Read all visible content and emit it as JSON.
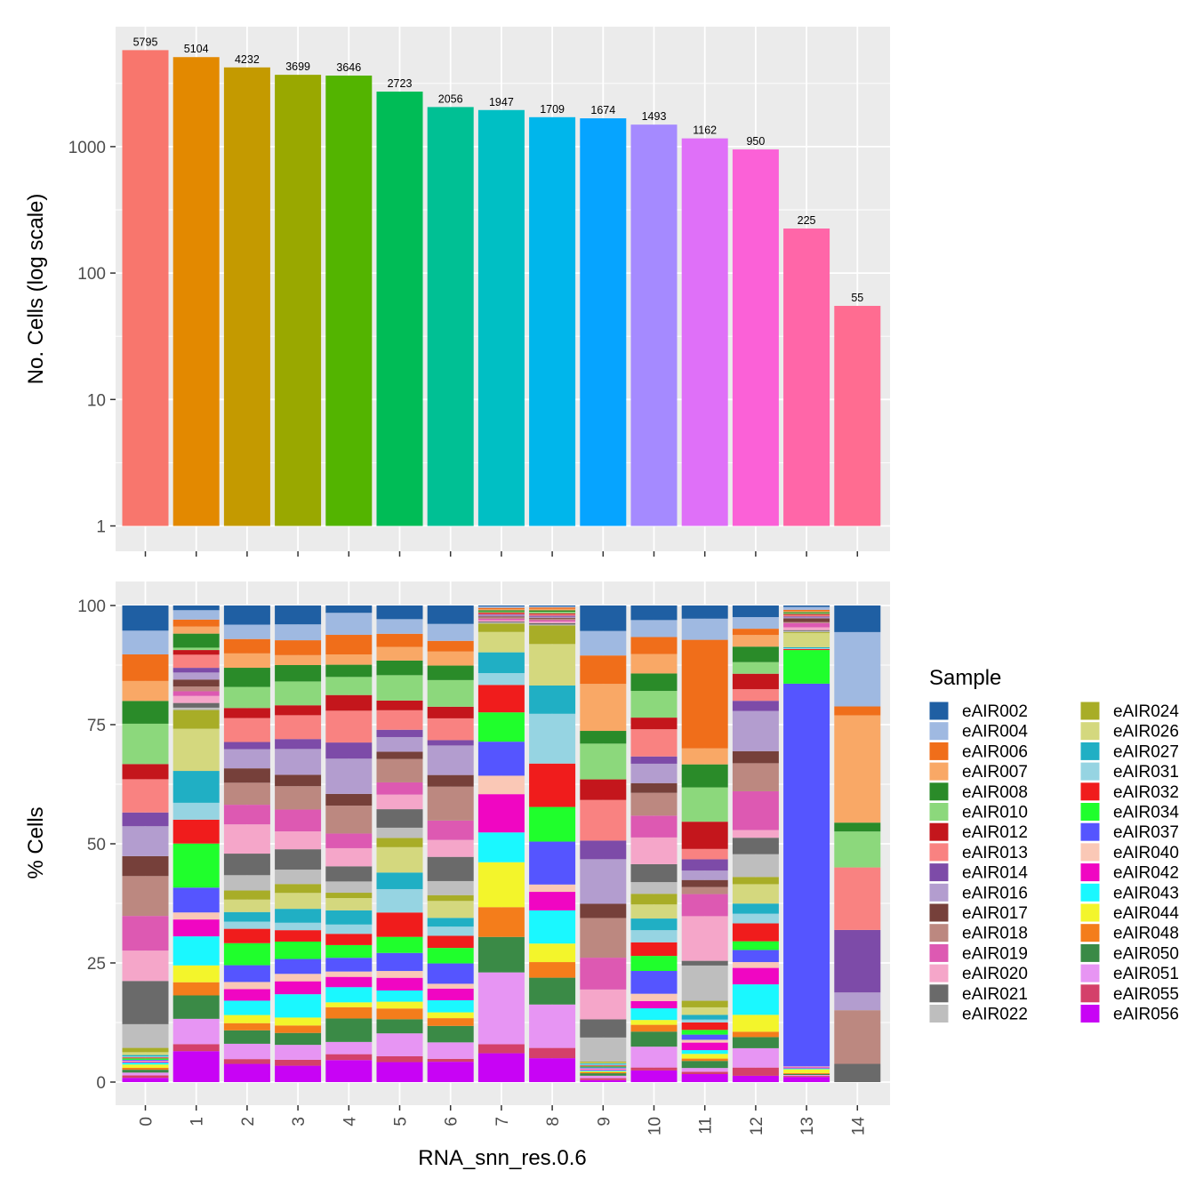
{
  "chart_data": [
    {
      "type": "bar",
      "panel": "counts",
      "ylabel": "No. Cells (log scale)",
      "y_scale": "log10",
      "ylim": [
        1,
        7500
      ],
      "y_ticks": [
        1,
        10,
        100,
        1000
      ],
      "y_tick_labels": [
        "1",
        "10",
        "100",
        "1000"
      ],
      "categories": [
        "0",
        "1",
        "2",
        "3",
        "4",
        "5",
        "6",
        "7",
        "8",
        "9",
        "10",
        "11",
        "12",
        "13",
        "14"
      ],
      "values": [
        5795,
        5104,
        4232,
        3699,
        3646,
        2723,
        2056,
        1947,
        1709,
        1674,
        1493,
        1162,
        950,
        225,
        55
      ],
      "data_labels": [
        "5795",
        "5104",
        "4232",
        "3699",
        "3646",
        "2723",
        "2056",
        "1947",
        "1709",
        "1674",
        "1493",
        "1162",
        "950",
        "225",
        "55"
      ],
      "colors": [
        "#F8766D",
        "#E38900",
        "#C49A00",
        "#99A800",
        "#53B400",
        "#00BC56",
        "#00C094",
        "#00BFC4",
        "#00B6EB",
        "#06A4FF",
        "#A58AFF",
        "#DF70F8",
        "#FB61D7",
        "#FF66A8",
        "#FF6C91"
      ],
      "grid": true
    },
    {
      "type": "bar",
      "stacked": true,
      "panel": "percent",
      "xlabel": "RNA_snn_res.0.6",
      "ylabel": "% Cells",
      "ylim": [
        0,
        100
      ],
      "y_ticks": [
        0,
        25,
        50,
        75,
        100
      ],
      "y_tick_labels": [
        "0",
        "25",
        "50",
        "75",
        "100"
      ],
      "categories": [
        "0",
        "1",
        "2",
        "3",
        "4",
        "5",
        "6",
        "7",
        "8",
        "9",
        "10",
        "11",
        "12",
        "13",
        "14"
      ],
      "legend_title": "Sample",
      "legend_position": "right",
      "grid": true,
      "series": [
        {
          "name": "eAIR002",
          "color": "#1F5FA3",
          "values": [
            5.3,
            1.0,
            4.0,
            3.8,
            1.5,
            2.8,
            3.8,
            0.2,
            0.2,
            5.2,
            3.0,
            2.8,
            2.4,
            0.3,
            5.4
          ]
        },
        {
          "name": "eAIR004",
          "color": "#9FB9E1",
          "values": [
            5.0,
            2.0,
            3.0,
            3.2,
            4.5,
            3.0,
            3.5,
            0.3,
            0.2,
            5.0,
            3.5,
            4.5,
            2.4,
            0.6,
            15.1
          ]
        },
        {
          "name": "eAIR006",
          "color": "#F06E1A",
          "values": [
            5.6,
            1.5,
            3.0,
            3.0,
            4.0,
            2.7,
            2.2,
            0.3,
            0.3,
            5.8,
            3.5,
            23.1,
            1.3,
            0.3,
            1.8
          ]
        },
        {
          "name": "eAIR007",
          "color": "#F9A866",
          "values": [
            4.2,
            1.5,
            3.0,
            2.0,
            2.1,
            2.8,
            2.9,
            0.2,
            0.3,
            9.6,
            4.0,
            3.4,
            2.4,
            0.2,
            21.8
          ]
        },
        {
          "name": "eAIR008",
          "color": "#2A8B29",
          "values": [
            4.8,
            3.0,
            4.0,
            3.3,
            2.5,
            3.0,
            3.0,
            0.3,
            0.3,
            2.6,
            3.6,
            4.9,
            3.2,
            0.2,
            1.8
          ]
        },
        {
          "name": "eAIR010",
          "color": "#8CD87C",
          "values": [
            8.5,
            0.5,
            4.4,
            4.8,
            3.7,
            5.2,
            5.5,
            0.2,
            0.3,
            7.3,
            5.5,
            7.3,
            2.4,
            0.2,
            7.3
          ]
        },
        {
          "name": "eAIR012",
          "color": "#C4161C",
          "values": [
            3.2,
            1.0,
            2.1,
            2.0,
            3.2,
            2.0,
            2.4,
            0.2,
            0.2,
            4.2,
            2.4,
            5.8,
            3.2,
            0.2,
            0.0
          ]
        },
        {
          "name": "eAIR013",
          "color": "#F98281",
          "values": [
            7.0,
            2.8,
            5.0,
            4.8,
            6.5,
            4.0,
            4.5,
            0.2,
            0.3,
            8.3,
            5.6,
            2.2,
            2.4,
            0.3,
            12.7
          ]
        },
        {
          "name": "eAIR014",
          "color": "#7D4BA8",
          "values": [
            2.9,
            1.0,
            1.5,
            2.0,
            3.3,
            1.5,
            1.1,
            0.2,
            0.2,
            3.8,
            1.5,
            2.4,
            2.1,
            0.2,
            12.7
          ]
        },
        {
          "name": "eAIR016",
          "color": "#B39DCF",
          "values": [
            6.3,
            1.5,
            4.0,
            5.2,
            7.2,
            3.0,
            6.1,
            0.2,
            0.2,
            9.1,
            4.0,
            2.0,
            8.3,
            0.2,
            3.6
          ]
        },
        {
          "name": "eAIR017",
          "color": "#76403A",
          "values": [
            4.2,
            1.5,
            3.0,
            2.3,
            2.4,
            1.5,
            2.4,
            0.2,
            0.2,
            2.9,
            2.0,
            1.5,
            2.5,
            0.8,
            0.0
          ]
        },
        {
          "name": "eAIR018",
          "color": "#BC8880",
          "values": [
            8.4,
            1.0,
            4.6,
            4.7,
            5.7,
            4.8,
            7.0,
            0.3,
            0.3,
            8.1,
            4.7,
            1.5,
            5.8,
            0.2,
            10.9
          ]
        },
        {
          "name": "eAIR019",
          "color": "#DD59B2",
          "values": [
            7.3,
            1.0,
            4.1,
            4.4,
            3.0,
            2.5,
            4.0,
            0.3,
            0.3,
            6.5,
            4.5,
            4.7,
            8.0,
            0.9,
            0.0
          ]
        },
        {
          "name": "eAIR020",
          "color": "#F5A6C9",
          "values": [
            6.4,
            1.5,
            6.1,
            3.6,
            3.7,
            3.0,
            3.5,
            0.3,
            0.3,
            6.1,
            5.5,
            9.5,
            1.6,
            0.6,
            0.0
          ]
        },
        {
          "name": "eAIR021",
          "color": "#6A6A6A",
          "values": [
            9.1,
            1.0,
            4.5,
            4.1,
            3.1,
            3.8,
            5.0,
            0.2,
            0.3,
            3.7,
            3.7,
            1.0,
            3.4,
            0.2,
            3.7
          ]
        },
        {
          "name": "eAIR022",
          "color": "#BEBEBE",
          "values": [
            5.0,
            0.5,
            3.2,
            2.9,
            2.3,
            2.1,
            2.9,
            0.2,
            0.2,
            4.9,
            2.4,
            7.5,
            4.7,
            0.2,
            0.0
          ]
        },
        {
          "name": "eAIR024",
          "color": "#A8AD27",
          "values": [
            0.9,
            4.0,
            1.9,
            1.8,
            1.1,
            1.9,
            1.2,
            1.8,
            3.8,
            0.2,
            2.2,
            1.4,
            1.5,
            0.2,
            0.0
          ]
        },
        {
          "name": "eAIR026",
          "color": "#D4D87E",
          "values": [
            0.6,
            9.0,
            2.6,
            3.2,
            2.5,
            5.2,
            3.5,
            4.3,
            8.5,
            0.2,
            2.9,
            1.6,
            4.0,
            3.0,
            0.0
          ]
        },
        {
          "name": "eAIR027",
          "color": "#20AFC4",
          "values": [
            0.3,
            6.8,
            2.0,
            2.8,
            2.9,
            3.4,
            1.8,
            4.4,
            5.8,
            0.2,
            2.4,
            1.0,
            2.1,
            0.2,
            0.0
          ]
        },
        {
          "name": "eAIR031",
          "color": "#96D4E2",
          "values": [
            0.2,
            3.6,
            1.5,
            1.5,
            1.9,
            4.8,
            1.9,
            2.5,
            10.2,
            0.2,
            2.5,
            0.6,
            2.0,
            0.2,
            0.0
          ]
        },
        {
          "name": "eAIR032",
          "color": "#F01C1C",
          "values": [
            0.2,
            5.1,
            3.0,
            2.3,
            2.3,
            5.0,
            2.5,
            5.8,
            8.9,
            0.2,
            2.8,
            1.6,
            3.7,
            0.2,
            0.0
          ]
        },
        {
          "name": "eAIR034",
          "color": "#1FFF2C",
          "values": [
            0.3,
            9.4,
            4.6,
            3.5,
            2.6,
            3.3,
            3.2,
            6.2,
            7.1,
            0.2,
            3.1,
            1.0,
            1.8,
            7.1,
            0.0
          ]
        },
        {
          "name": "eAIR037",
          "color": "#5555FF",
          "values": [
            0.2,
            5.3,
            3.5,
            3.0,
            2.8,
            3.7,
            4.2,
            7.2,
            8.8,
            0.2,
            4.7,
            1.1,
            2.5,
            80.8,
            0.0
          ]
        },
        {
          "name": "eAIR040",
          "color": "#FAC8B6",
          "values": [
            0.2,
            1.5,
            1.5,
            1.5,
            1.1,
            1.4,
            1.0,
            3.9,
            1.5,
            0.2,
            1.5,
            0.6,
            1.2,
            0.2,
            0.0
          ]
        },
        {
          "name": "eAIR042",
          "color": "#F006C2",
          "values": [
            0.2,
            3.6,
            2.4,
            2.6,
            2.1,
            2.6,
            2.4,
            8.1,
            3.8,
            0.2,
            1.5,
            1.6,
            3.4,
            0.2,
            0.0
          ]
        },
        {
          "name": "eAIR043",
          "color": "#1AF8FF",
          "values": [
            0.4,
            6.2,
            3.0,
            4.7,
            3.1,
            2.3,
            2.5,
            6.3,
            6.8,
            0.2,
            2.4,
            0.8,
            6.3,
            0.2,
            0.0
          ]
        },
        {
          "name": "eAIR044",
          "color": "#F3F52B",
          "values": [
            0.7,
            3.6,
            1.7,
            1.6,
            1.0,
            1.4,
            1.2,
            9.5,
            3.8,
            0.2,
            1.0,
            1.0,
            3.5,
            0.8,
            0.0
          ]
        },
        {
          "name": "eAIR048",
          "color": "#F47D1B",
          "values": [
            0.4,
            2.8,
            1.5,
            1.5,
            2.3,
            2.2,
            1.6,
            6.3,
            3.2,
            0.2,
            1.4,
            0.5,
            1.1,
            0.2,
            0.0
          ]
        },
        {
          "name": "eAIR050",
          "color": "#3A8A46",
          "values": [
            0.6,
            5.0,
            2.8,
            2.4,
            4.8,
            2.9,
            3.4,
            7.5,
            5.5,
            0.5,
            3.1,
            1.5,
            2.3,
            0.2,
            0.0
          ]
        },
        {
          "name": "eAIR051",
          "color": "#E795F3",
          "values": [
            0.6,
            5.4,
            3.2,
            3.0,
            2.5,
            4.7,
            3.4,
            15.2,
            8.9,
            0.5,
            4.3,
            0.8,
            4.0,
            0.2,
            0.0
          ]
        },
        {
          "name": "eAIR055",
          "color": "#D4406A",
          "values": [
            0.5,
            1.5,
            1.0,
            1.2,
            1.2,
            1.2,
            0.6,
            1.9,
            2.1,
            0.4,
            0.6,
            0.5,
            1.7,
            0.2,
            0.0
          ]
        },
        {
          "name": "eAIR056",
          "color": "#C803F5",
          "values": [
            0.9,
            6.6,
            3.8,
            3.3,
            4.5,
            4.1,
            4.2,
            6.1,
            4.9,
            0.4,
            2.4,
            1.7,
            1.3,
            1.1,
            0.0
          ]
        }
      ]
    }
  ]
}
